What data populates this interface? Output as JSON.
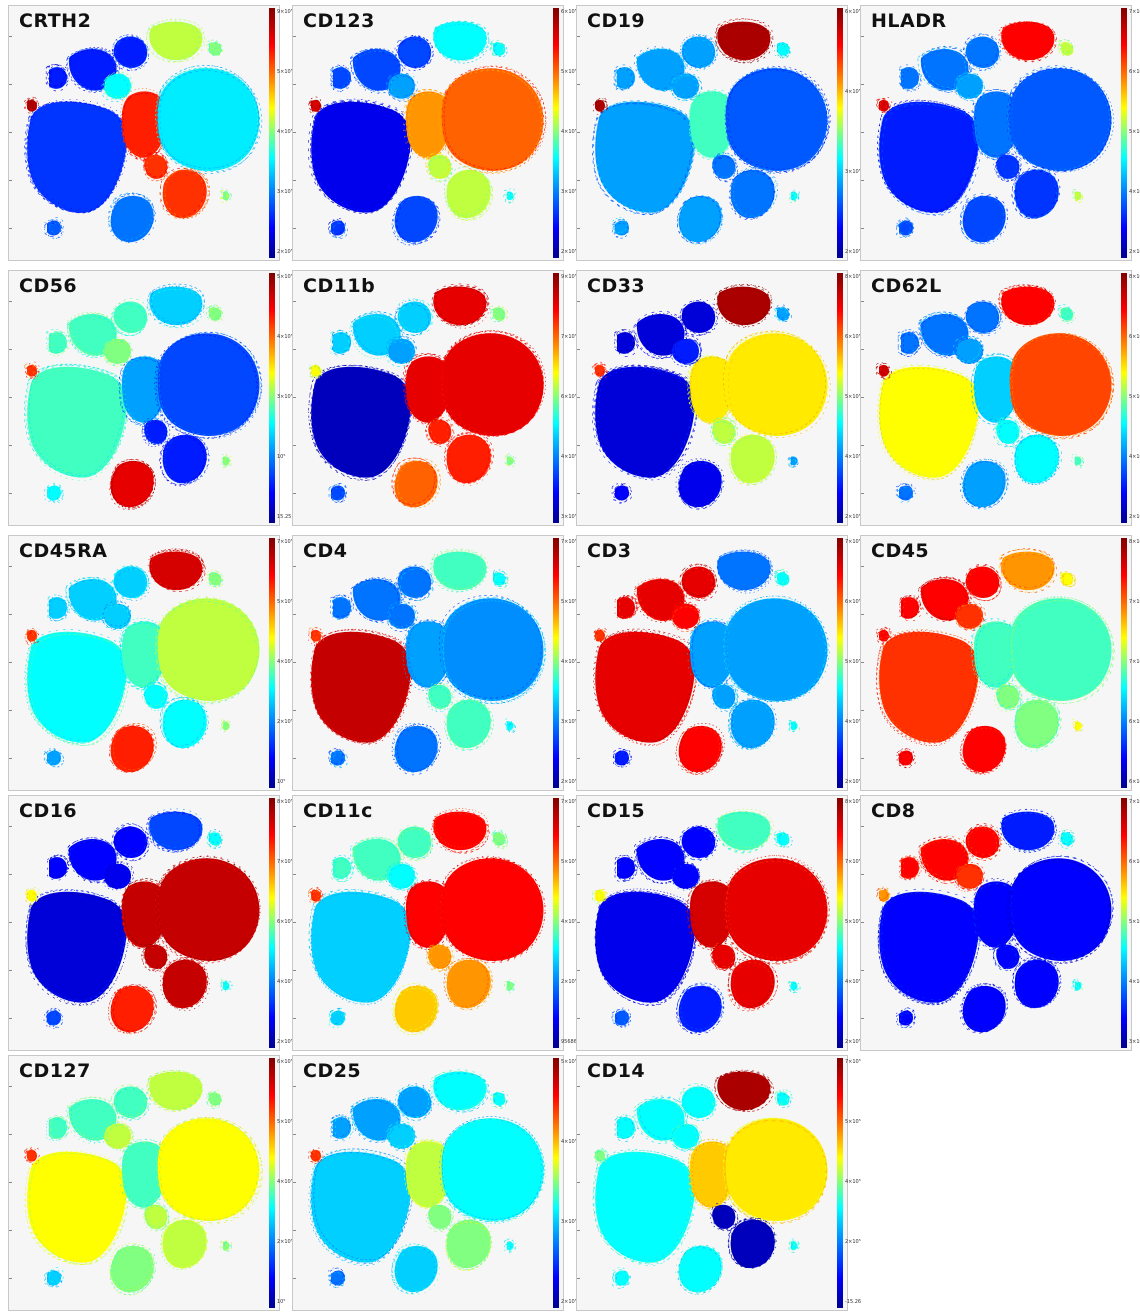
{
  "chart_data": [
    {
      "type": "heatmap",
      "marker": "CRTH2",
      "cbar_ticks": [
        "9×10⁵",
        "5×10⁵",
        "4×10⁵",
        "3×10⁵",
        "2×10⁵"
      ],
      "clusters": {
        "tl": 0.15,
        "tr": 0.55,
        "left": 0.18,
        "cc": 0.82,
        "cl": 0.4,
        "right": 0.38,
        "bl": 0.25,
        "br": 0.8,
        "bot": 0.22,
        "dot": 0.95,
        "small": 0.5
      }
    },
    {
      "type": "heatmap",
      "marker": "CD123",
      "cbar_ticks": [
        "6×10⁵",
        "5×10⁵",
        "4×10⁵",
        "3×10⁵",
        "2×10⁵"
      ],
      "clusters": {
        "tl": 0.2,
        "tr": 0.4,
        "left": 0.1,
        "cc": 0.7,
        "cl": 0.3,
        "right": 0.75,
        "bl": 0.2,
        "br": 0.55,
        "bot": 0.18,
        "dot": 0.9,
        "small": 0.4
      }
    },
    {
      "type": "heatmap",
      "marker": "CD19",
      "cbar_ticks": [
        "6×10⁵",
        "4×10⁵",
        "3×10⁵",
        "2×10⁵"
      ],
      "clusters": {
        "tl": 0.3,
        "tr": 0.95,
        "left": 0.3,
        "cc": 0.45,
        "cl": 0.3,
        "right": 0.22,
        "bl": 0.3,
        "br": 0.25,
        "bot": 0.3,
        "dot": 0.95,
        "small": 0.4
      }
    },
    {
      "type": "heatmap",
      "marker": "HLADR",
      "cbar_ticks": [
        "7×10⁵",
        "6×10⁵",
        "5×10⁵",
        "4×10⁵",
        "2×10⁵"
      ],
      "clusters": {
        "tl": 0.25,
        "tr": 0.85,
        "left": 0.15,
        "cc": 0.25,
        "cl": 0.3,
        "right": 0.22,
        "bl": 0.2,
        "br": 0.18,
        "bot": 0.2,
        "dot": 0.9,
        "small": 0.55
      }
    },
    {
      "type": "heatmap",
      "marker": "CD56",
      "cbar_ticks": [
        "5×10⁵",
        "4×10⁵",
        "3×10⁵",
        "10⁵",
        "15.25"
      ],
      "clusters": {
        "tl": 0.45,
        "tr": 0.35,
        "left": 0.45,
        "cc": 0.3,
        "cl": 0.5,
        "right": 0.2,
        "bl": 0.88,
        "br": 0.15,
        "bot": 0.4,
        "dot": 0.8,
        "small": 0.5
      }
    },
    {
      "type": "heatmap",
      "marker": "CD11b",
      "cbar_ticks": [
        "9×10⁵",
        "7×10⁵",
        "6×10⁵",
        "4×10⁵",
        "3×10⁵"
      ],
      "clusters": {
        "tl": 0.35,
        "tr": 0.88,
        "left": 0.05,
        "cc": 0.88,
        "cl": 0.3,
        "right": 0.88,
        "bl": 0.75,
        "br": 0.82,
        "bot": 0.2,
        "dot": 0.6,
        "small": 0.5
      }
    },
    {
      "type": "heatmap",
      "marker": "CD33",
      "cbar_ticks": [
        "8×10⁵",
        "6×10⁵",
        "5×10⁵",
        "4×10⁵",
        "2×10⁵"
      ],
      "clusters": {
        "tl": 0.08,
        "tr": 0.95,
        "left": 0.08,
        "cc": 0.62,
        "cl": 0.15,
        "right": 0.62,
        "bl": 0.1,
        "br": 0.55,
        "bot": 0.12,
        "dot": 0.8,
        "small": 0.3
      }
    },
    {
      "type": "heatmap",
      "marker": "CD62L",
      "cbar_ticks": [
        "8×10⁵",
        "6×10⁵",
        "5×10⁵",
        "4×10⁵",
        "2×10⁵"
      ],
      "clusters": {
        "tl": 0.25,
        "tr": 0.85,
        "left": 0.6,
        "cc": 0.35,
        "cl": 0.3,
        "right": 0.78,
        "bl": 0.3,
        "br": 0.4,
        "bot": 0.25,
        "dot": 0.9,
        "small": 0.45
      }
    },
    {
      "type": "heatmap",
      "marker": "CD45RA",
      "cbar_ticks": [
        "7×10⁵",
        "5×10⁵",
        "4×10⁵",
        "2×10⁵",
        "10⁵"
      ],
      "clusters": {
        "tl": 0.35,
        "tr": 0.9,
        "left": 0.4,
        "cc": 0.45,
        "cl": 0.35,
        "right": 0.55,
        "bl": 0.82,
        "br": 0.4,
        "bot": 0.3,
        "dot": 0.8,
        "small": 0.5
      }
    },
    {
      "type": "heatmap",
      "marker": "CD4",
      "cbar_ticks": [
        "7×10⁵",
        "5×10⁵",
        "4×10⁵",
        "3×10⁵",
        "2×10⁵"
      ],
      "clusters": {
        "tl": 0.25,
        "tr": 0.45,
        "left": 0.92,
        "cc": 0.3,
        "cl": 0.25,
        "right": 0.28,
        "bl": 0.25,
        "br": 0.45,
        "bot": 0.25,
        "dot": 0.8,
        "small": 0.4
      }
    },
    {
      "type": "heatmap",
      "marker": "CD3",
      "cbar_ticks": [
        "7×10⁵",
        "6×10⁵",
        "5×10⁵",
        "4×10⁵",
        "2×10⁵"
      ],
      "clusters": {
        "tl": 0.88,
        "tr": 0.25,
        "left": 0.88,
        "cc": 0.3,
        "cl": 0.85,
        "right": 0.3,
        "bl": 0.85,
        "br": 0.3,
        "bot": 0.15,
        "dot": 0.8,
        "small": 0.4
      }
    },
    {
      "type": "heatmap",
      "marker": "CD45",
      "cbar_ticks": [
        "8×10⁵",
        "7×10⁵",
        "7×10⁵",
        "6×10⁵",
        "6×10⁵"
      ],
      "clusters": {
        "tl": 0.85,
        "tr": 0.7,
        "left": 0.8,
        "cc": 0.45,
        "cl": 0.8,
        "right": 0.45,
        "bl": 0.85,
        "br": 0.5,
        "bot": 0.85,
        "dot": 0.85,
        "small": 0.6
      }
    },
    {
      "type": "heatmap",
      "marker": "CD16",
      "cbar_ticks": [
        "8×10⁵",
        "7×10⁵",
        "6×10⁵",
        "4×10⁵",
        "2×10⁵"
      ],
      "clusters": {
        "tl": 0.12,
        "tr": 0.2,
        "left": 0.08,
        "cc": 0.92,
        "cl": 0.1,
        "right": 0.92,
        "bl": 0.82,
        "br": 0.92,
        "bot": 0.2,
        "dot": 0.6,
        "small": 0.4
      }
    },
    {
      "type": "heatmap",
      "marker": "CD11c",
      "cbar_ticks": [
        "7×10⁵",
        "5×10⁵",
        "4×10⁵",
        "2×10⁵",
        "95686"
      ],
      "clusters": {
        "tl": 0.45,
        "tr": 0.85,
        "left": 0.35,
        "cc": 0.85,
        "cl": 0.4,
        "right": 0.85,
        "bl": 0.65,
        "br": 0.7,
        "bot": 0.35,
        "dot": 0.8,
        "small": 0.5
      }
    },
    {
      "type": "heatmap",
      "marker": "CD15",
      "cbar_ticks": [
        "8×10⁵",
        "7×10⁵",
        "5×10⁵",
        "4×10⁵",
        "2×10⁵"
      ],
      "clusters": {
        "tl": 0.12,
        "tr": 0.45,
        "left": 0.1,
        "cc": 0.9,
        "cl": 0.12,
        "right": 0.88,
        "bl": 0.15,
        "br": 0.88,
        "bot": 0.22,
        "dot": 0.6,
        "small": 0.4
      }
    },
    {
      "type": "heatmap",
      "marker": "CD8",
      "cbar_ticks": [
        "7×10⁵",
        "6×10⁵",
        "5×10⁵",
        "4×10⁵",
        "3×10⁵"
      ],
      "clusters": {
        "tl": 0.85,
        "tr": 0.15,
        "left": 0.12,
        "cc": 0.12,
        "cl": 0.8,
        "right": 0.12,
        "bl": 0.12,
        "br": 0.12,
        "bot": 0.12,
        "dot": 0.7,
        "small": 0.4
      }
    },
    {
      "type": "heatmap",
      "marker": "CD127",
      "cbar_ticks": [
        "6×10⁵",
        "5×10⁵",
        "4×10⁵",
        "2×10⁵",
        "10⁵"
      ],
      "clusters": {
        "tl": 0.45,
        "tr": 0.55,
        "left": 0.6,
        "cc": 0.45,
        "cl": 0.55,
        "right": 0.6,
        "bl": 0.5,
        "br": 0.55,
        "bot": 0.35,
        "dot": 0.8,
        "small": 0.5
      }
    },
    {
      "type": "heatmap",
      "marker": "CD25",
      "cbar_ticks": [
        "5×10⁵",
        "4×10⁵",
        "3×10⁵",
        "2×10⁵"
      ],
      "clusters": {
        "tl": 0.3,
        "tr": 0.4,
        "left": 0.35,
        "cc": 0.55,
        "cl": 0.35,
        "right": 0.4,
        "bl": 0.35,
        "br": 0.5,
        "bot": 0.25,
        "dot": 0.8,
        "small": 0.4
      }
    },
    {
      "type": "heatmap",
      "marker": "CD14",
      "cbar_ticks": [
        "7×10⁵",
        "5×10⁵",
        "4×10⁵",
        "2×10⁵",
        "-15.26"
      ],
      "clusters": {
        "tl": 0.4,
        "tr": 0.95,
        "left": 0.4,
        "cc": 0.65,
        "cl": 0.4,
        "right": 0.62,
        "bl": 0.4,
        "br": 0.05,
        "bot": 0.4,
        "dot": 0.5,
        "small": 0.4
      }
    }
  ]
}
